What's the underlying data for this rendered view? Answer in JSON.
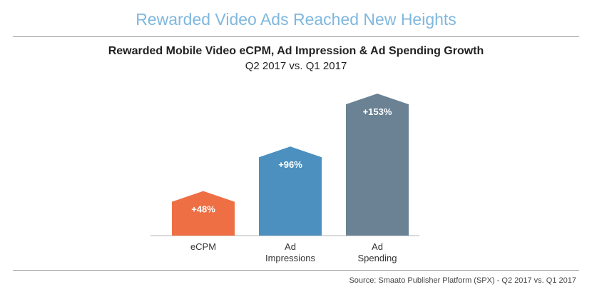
{
  "headline": "Rewarded Video Ads Reached New Heights",
  "source": "Source: Smaato Publisher Platform (SPX) - Q2 2017 vs. Q1 2017",
  "chart_data": {
    "type": "bar",
    "title": "Rewarded Mobile Video eCPM, Ad Impression & Ad Spending Growth",
    "subtitle": "Q2 2017 vs. Q1 2017",
    "categories": [
      [
        "eCPM"
      ],
      [
        "Ad",
        "Impressions"
      ],
      [
        "Ad",
        "Spending"
      ]
    ],
    "values": [
      48,
      96,
      153
    ],
    "value_labels": [
      "+48%",
      "+96%",
      "+153%"
    ],
    "colors": [
      "#ee6f44",
      "#4b90be",
      "#6a8294"
    ],
    "ylim": [
      0,
      160
    ],
    "grid": false
  }
}
